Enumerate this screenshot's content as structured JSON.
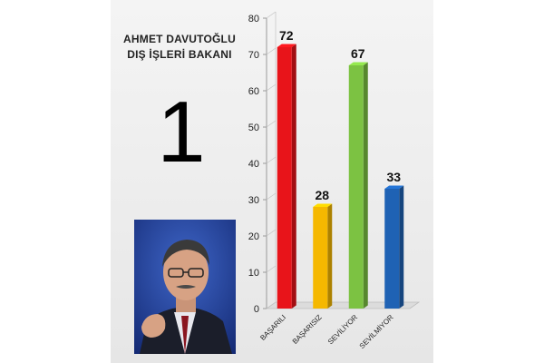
{
  "person": {
    "title_line1": "AHMET DAVUTOĞLU",
    "title_line2": "DIŞ İŞLERİ BAKANI",
    "rank": "1"
  },
  "chart_data": {
    "type": "bar",
    "categories": [
      "BAŞARILI",
      "BAŞARISIZ",
      "SEVİLİYOR",
      "SEVİLMİYOR"
    ],
    "values": [
      72,
      28,
      67,
      33
    ],
    "colors": [
      "#e8141a",
      "#f5b800",
      "#7cc242",
      "#1f62b4"
    ],
    "ylim": [
      0,
      80
    ],
    "yticks": [
      0,
      10,
      20,
      30,
      40,
      50,
      60,
      70,
      80
    ],
    "grid": false,
    "legend": "none",
    "data_labels": true
  }
}
